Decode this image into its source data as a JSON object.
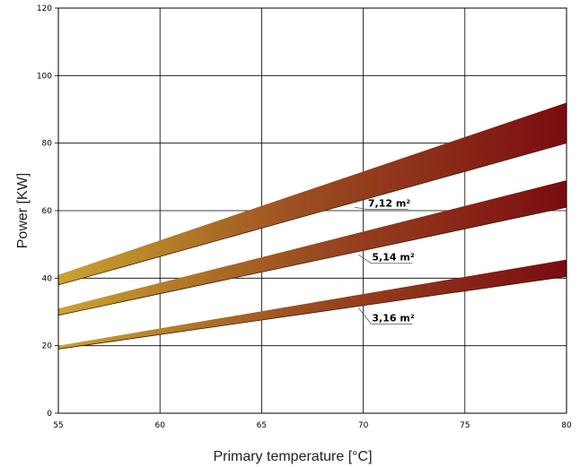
{
  "chart_data": {
    "type": "area",
    "title": "",
    "xlabel": "Primary temperature [°C]",
    "ylabel": "Power [KW]",
    "xlim": [
      55,
      80
    ],
    "ylim": [
      0,
      120
    ],
    "xticks": [
      55,
      60,
      65,
      70,
      75,
      80
    ],
    "yticks": [
      0,
      20,
      40,
      60,
      80,
      100,
      120
    ],
    "grid": true,
    "color_gradient": [
      "#c9a530",
      "#9a4a20",
      "#7a0c10"
    ],
    "series": [
      {
        "name": "7,12 m²",
        "x": [
          55,
          80
        ],
        "lower": [
          38,
          80
        ],
        "upper": [
          41,
          92
        ],
        "label_at": [
          70.1,
          62
        ]
      },
      {
        "name": "5,14 m²",
        "x": [
          55,
          80
        ],
        "lower": [
          29,
          61
        ],
        "upper": [
          31,
          69
        ],
        "label_at": [
          70.3,
          46
        ]
      },
      {
        "name": "3,16 m²",
        "x": [
          55,
          80
        ],
        "lower": [
          19,
          40.5
        ],
        "upper": [
          20,
          45.5
        ],
        "label_at": [
          70.3,
          28
        ]
      }
    ]
  }
}
